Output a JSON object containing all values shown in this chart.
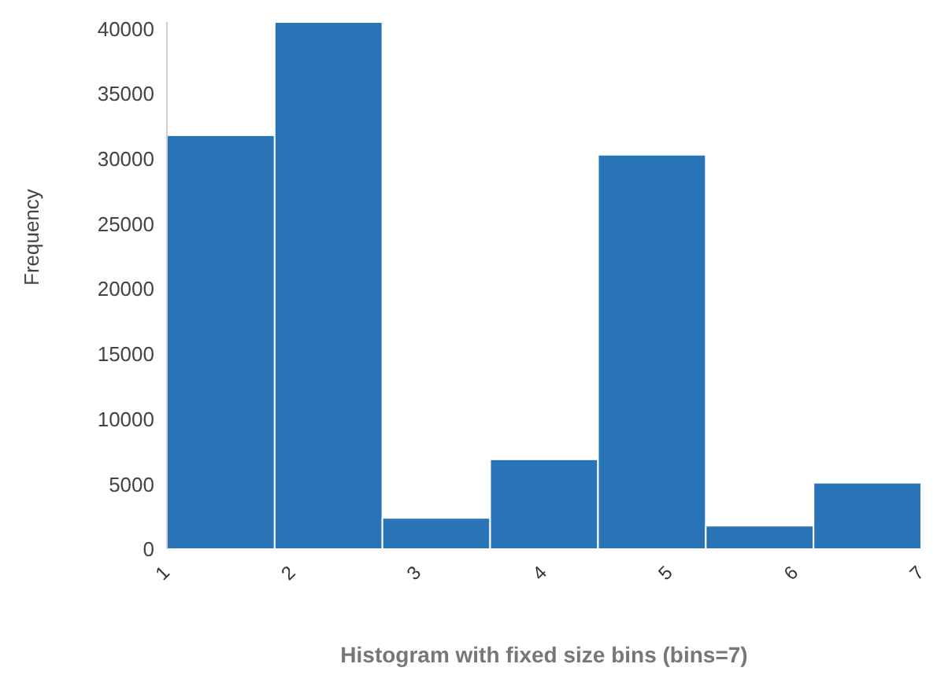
{
  "chart_data": {
    "type": "histogram",
    "xlabel": "Histogram with fixed size bins (bins=7)",
    "ylabel": "Frequency",
    "bins": [
      1,
      1.857,
      2.714,
      3.571,
      4.429,
      5.286,
      6.143,
      7
    ],
    "values": [
      31800,
      40500,
      2400,
      6900,
      30300,
      1800,
      5100
    ],
    "color": "#2874b6",
    "xlim": [
      1,
      7
    ],
    "xticks": [
      1,
      2,
      3,
      4,
      5,
      6,
      7
    ],
    "ylim": [
      0,
      40500
    ],
    "yticks": [
      0,
      5000,
      10000,
      15000,
      20000,
      25000,
      30000,
      35000,
      40000
    ],
    "grid": false
  }
}
